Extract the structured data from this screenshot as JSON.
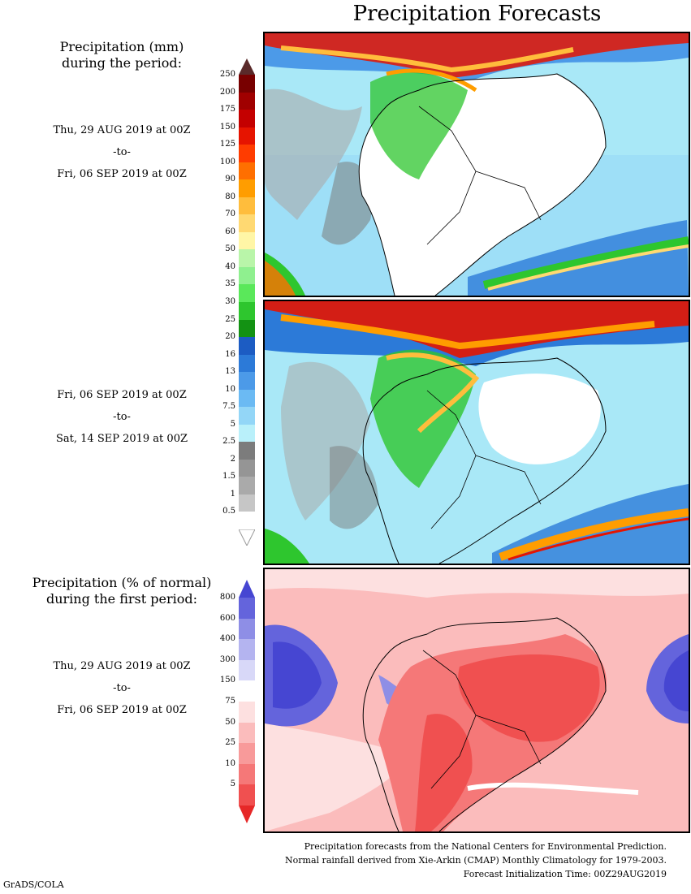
{
  "title": "Precipitation Forecasts",
  "precip_legend": {
    "title_line1": "Precipitation (mm)",
    "title_line2": "during the period:",
    "bins": [
      {
        "label": "0.5",
        "color": "#ffffff"
      },
      {
        "label": "1",
        "color": "#c6c6c6"
      },
      {
        "label": "1.5",
        "color": "#aaaaaa"
      },
      {
        "label": "2",
        "color": "#959595"
      },
      {
        "label": "2.5",
        "color": "#7c7c7c"
      },
      {
        "label": "5",
        "color": "#b9f0fa"
      },
      {
        "label": "7.5",
        "color": "#93d6f7"
      },
      {
        "label": "10",
        "color": "#6bbaf3"
      },
      {
        "label": "13",
        "color": "#4c9ae8"
      },
      {
        "label": "16",
        "color": "#2c7ad8"
      },
      {
        "label": "20",
        "color": "#1c5cc3"
      },
      {
        "label": "25",
        "color": "#139213"
      },
      {
        "label": "30",
        "color": "#2ec62e"
      },
      {
        "label": "35",
        "color": "#5ae85a"
      },
      {
        "label": "40",
        "color": "#8ff08f"
      },
      {
        "label": "50",
        "color": "#b9f5a9"
      },
      {
        "label": "60",
        "color": "#fff6a6"
      },
      {
        "label": "70",
        "color": "#ffd972"
      },
      {
        "label": "80",
        "color": "#ffbd3c"
      },
      {
        "label": "90",
        "color": "#ff9d00"
      },
      {
        "label": "100",
        "color": "#ff6f00"
      },
      {
        "label": "125",
        "color": "#ff3c00"
      },
      {
        "label": "150",
        "color": "#e61400"
      },
      {
        "label": "175",
        "color": "#c40000"
      },
      {
        "label": "200",
        "color": "#a00000"
      },
      {
        "label": "250",
        "color": "#780000"
      }
    ],
    "top_arrow_color": "#5a2a2a"
  },
  "anomaly_legend": {
    "title_line1": "Precipitation (% of normal)",
    "title_line2": "during the first period:",
    "bins": [
      {
        "label": "5",
        "color": "#f05050"
      },
      {
        "label": "10",
        "color": "#f57878"
      },
      {
        "label": "25",
        "color": "#f89a9a"
      },
      {
        "label": "50",
        "color": "#fbbcbc"
      },
      {
        "label": "75",
        "color": "#fde0e0"
      },
      {
        "label": "150",
        "color": "#ffffff"
      },
      {
        "label": "300",
        "color": "#d8d8f8"
      },
      {
        "label": "400",
        "color": "#b4b4f0"
      },
      {
        "label": "600",
        "color": "#8e8ee6"
      },
      {
        "label": "800",
        "color": "#6464dc"
      }
    ],
    "top_arrow_color": "#4646d2",
    "bottom_arrow_color": "#e62828"
  },
  "periods": [
    {
      "from": "Thu, 29 AUG 2019 at 00Z",
      "to_word": "-to-",
      "until": "Fri, 06 SEP 2019 at 00Z"
    },
    {
      "from": "Fri, 06 SEP 2019 at 00Z",
      "to_word": "-to-",
      "until": "Sat, 14 SEP 2019 at 00Z"
    },
    {
      "from": "Thu, 29 AUG 2019 at 00Z",
      "to_word": "-to-",
      "until": "Fri, 06 SEP 2019 at 00Z"
    }
  ],
  "footer": {
    "line1": "Precipitation forecasts from the National Centers for Environmental Prediction.",
    "line2": "Normal rainfall derived from Xie-Arkin (CMAP) Monthly Climatology for 1979-2003.",
    "line3": "Forecast Initialization Time: 00Z29AUG2019"
  },
  "credit": "GrADS/COLA"
}
